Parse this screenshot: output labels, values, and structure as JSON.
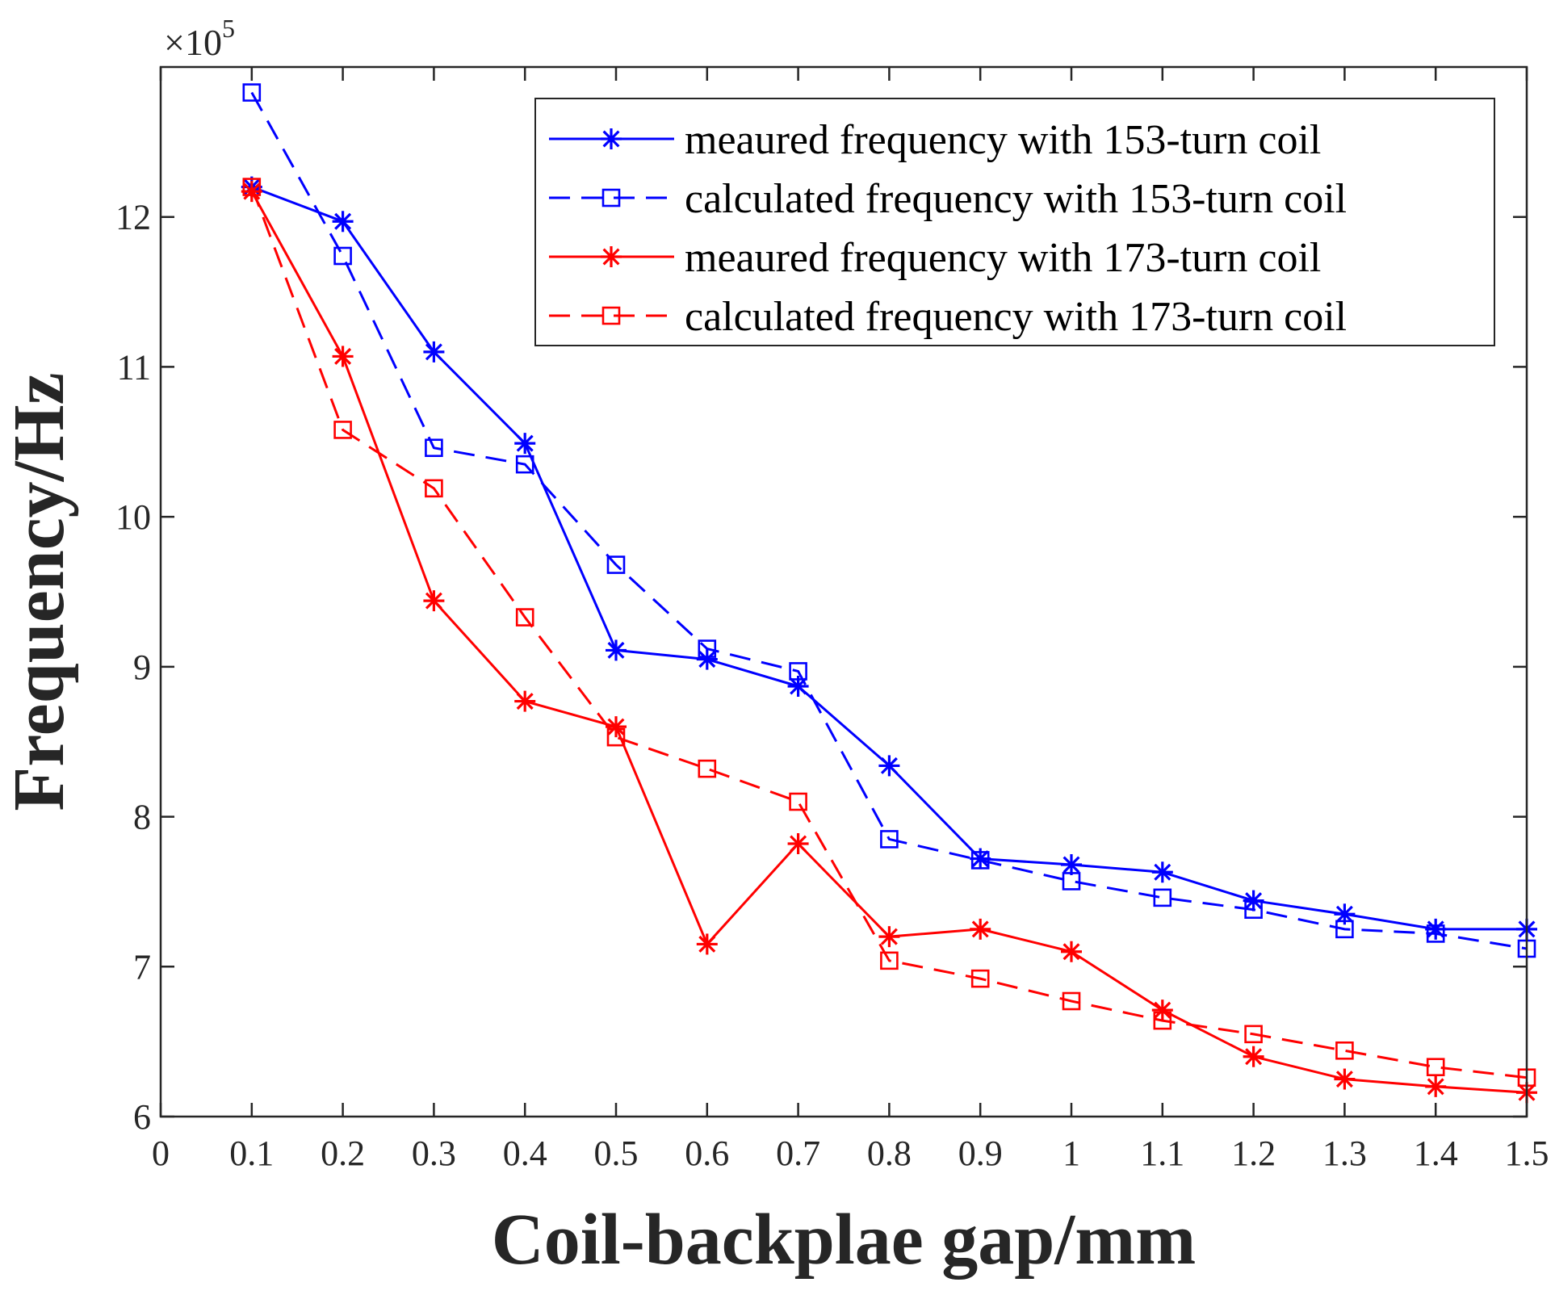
{
  "chart_data": {
    "type": "line",
    "xlabel": "Coil-backplae gap/mm",
    "ylabel": "Frequency/Hz",
    "y_multiplier": {
      "base": "×10",
      "exponent": "5"
    },
    "xlim": [
      0,
      1.5
    ],
    "ylim": [
      6,
      13
    ],
    "xticks": [
      0,
      0.1,
      0.2,
      0.3,
      0.4,
      0.5,
      0.6,
      0.7,
      0.8,
      0.9,
      1,
      1.1,
      1.2,
      1.3,
      1.4,
      1.5
    ],
    "yticks": [
      6,
      7,
      8,
      9,
      10,
      11,
      12
    ],
    "grid": false,
    "legend_position": "top-right",
    "x": [
      0.1,
      0.2,
      0.3,
      0.4,
      0.5,
      0.6,
      0.7,
      0.8,
      0.9,
      1.0,
      1.1,
      1.2,
      1.3,
      1.4,
      1.5
    ],
    "series": [
      {
        "name": "meaured frequency with 153-turn coil",
        "color": "#0000ff",
        "line": "solid",
        "marker": "asterisk",
        "values": [
          12.2,
          11.97,
          11.1,
          10.49,
          9.11,
          9.05,
          8.87,
          8.34,
          7.72,
          7.68,
          7.63,
          7.44,
          7.35,
          7.25,
          7.25
        ]
      },
      {
        "name": "calculated frequency with 153-turn coil",
        "color": "#0000ff",
        "line": "dashed",
        "marker": "square",
        "values": [
          12.83,
          11.74,
          10.46,
          10.35,
          9.68,
          9.12,
          8.97,
          7.85,
          7.71,
          7.57,
          7.46,
          7.38,
          7.25,
          7.22,
          7.12
        ]
      },
      {
        "name": "meaured frequency with 173-turn coil",
        "color": "#ff0000",
        "line": "solid",
        "marker": "asterisk",
        "values": [
          12.17,
          11.07,
          9.44,
          8.77,
          8.6,
          7.15,
          7.82,
          7.2,
          7.25,
          7.1,
          6.71,
          6.4,
          6.25,
          6.2,
          6.16
        ]
      },
      {
        "name": "calculated frequency with 173-turn coil",
        "color": "#ff0000",
        "line": "dashed",
        "marker": "square",
        "values": [
          12.2,
          10.58,
          10.19,
          9.33,
          8.53,
          8.32,
          8.1,
          7.04,
          6.92,
          6.77,
          6.64,
          6.55,
          6.44,
          6.33,
          6.26
        ]
      }
    ]
  }
}
